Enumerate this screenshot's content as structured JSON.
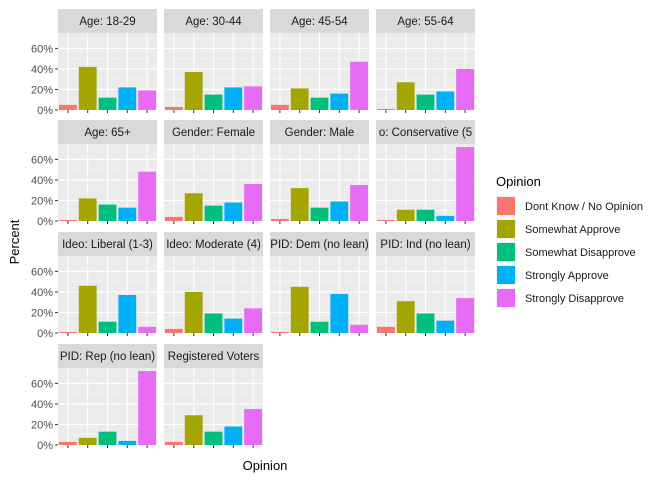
{
  "chart_data": {
    "type": "bar",
    "faceted": true,
    "xlabel": "Opinion",
    "ylabel": "Percent",
    "ylim": [
      0,
      0.75
    ],
    "yticks": [
      0,
      0.2,
      0.4,
      0.6
    ],
    "ytick_labels": [
      "0%",
      "20%",
      "40%",
      "60%"
    ],
    "grid": true,
    "legend": {
      "title": "Opinion",
      "position": "right",
      "items": [
        {
          "label": "Dont Know / No Opinion",
          "color": "#F8766D"
        },
        {
          "label": "Somewhat Approve",
          "color": "#A3A500"
        },
        {
          "label": "Somewhat Disapprove",
          "color": "#00BF7D"
        },
        {
          "label": "Strongly Approve",
          "color": "#00B0F6"
        },
        {
          "label": "Strongly Disapprove",
          "color": "#E76BF3"
        }
      ]
    },
    "categories": [
      "Dont Know / No Opinion",
      "Somewhat Approve",
      "Somewhat Disapprove",
      "Strongly Approve",
      "Strongly Disapprove"
    ],
    "facets": [
      {
        "label": "Age: 18-29",
        "values": [
          0.05,
          0.42,
          0.12,
          0.22,
          0.19
        ]
      },
      {
        "label": "Age: 30-44",
        "values": [
          0.03,
          0.37,
          0.15,
          0.22,
          0.23
        ]
      },
      {
        "label": "Age: 45-54",
        "values": [
          0.05,
          0.21,
          0.12,
          0.16,
          0.47
        ]
      },
      {
        "label": "Age: 55-64",
        "values": [
          0.01,
          0.27,
          0.15,
          0.18,
          0.4
        ]
      },
      {
        "label": "Age: 65+",
        "values": [
          0.01,
          0.22,
          0.16,
          0.13,
          0.48
        ]
      },
      {
        "label": "Gender: Female",
        "values": [
          0.04,
          0.27,
          0.15,
          0.18,
          0.36
        ]
      },
      {
        "label": "Gender: Male",
        "values": [
          0.02,
          0.32,
          0.13,
          0.19,
          0.35
        ]
      },
      {
        "label": "o: Conservative (5",
        "values": [
          0.01,
          0.11,
          0.11,
          0.05,
          0.72
        ]
      },
      {
        "label": "Ideo: Liberal (1-3)",
        "values": [
          0.01,
          0.46,
          0.11,
          0.37,
          0.06
        ]
      },
      {
        "label": "Ideo: Moderate (4)",
        "values": [
          0.04,
          0.4,
          0.19,
          0.14,
          0.24
        ]
      },
      {
        "label": "PID: Dem (no lean)",
        "values": [
          0.01,
          0.45,
          0.11,
          0.38,
          0.08
        ]
      },
      {
        "label": "PID: Ind (no lean)",
        "values": [
          0.06,
          0.31,
          0.19,
          0.12,
          0.34
        ]
      },
      {
        "label": "PID: Rep (no lean)",
        "values": [
          0.03,
          0.07,
          0.13,
          0.04,
          0.72
        ]
      },
      {
        "label": "Registered Voters",
        "values": [
          0.03,
          0.29,
          0.13,
          0.18,
          0.35
        ]
      }
    ]
  }
}
